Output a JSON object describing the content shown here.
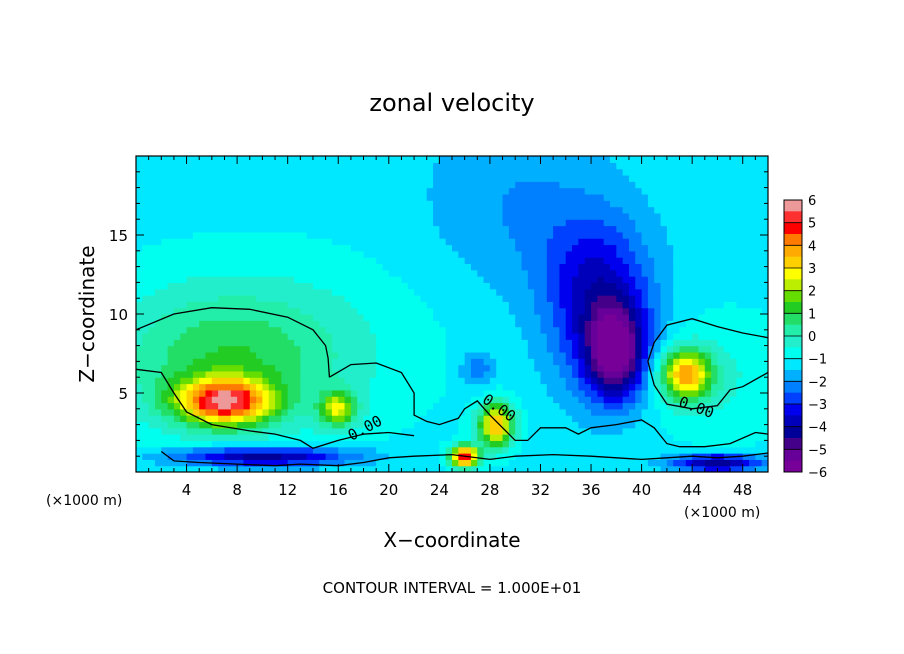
{
  "chart_data": {
    "type": "heatmap",
    "title": "zonal velocity",
    "xlabel": "X−coordinate",
    "ylabel": "Z−coordinate",
    "x_unit_note": "(×1000 m)",
    "x_unit_note_right": "(×1000 m)",
    "footnote": "CONTOUR INTERVAL = 1.000E+01",
    "xlim": [
      0,
      50
    ],
    "ylim": [
      0,
      20
    ],
    "x_ticks": [
      4,
      8,
      12,
      16,
      20,
      24,
      28,
      32,
      36,
      40,
      44,
      48
    ],
    "y_ticks": [
      5,
      10,
      15
    ],
    "colorbar": {
      "ticks": [
        "6",
        "5",
        "4",
        "3",
        "2",
        "1",
        "0",
        "−1",
        "−2",
        "−3",
        "−4",
        "−5",
        "−6"
      ],
      "colors": [
        "#ee9999",
        "#ff3030",
        "#ff0000",
        "#ff7a00",
        "#ffaa00",
        "#ffd000",
        "#ffff00",
        "#bbee00",
        "#66dd00",
        "#22cc22",
        "#22dd66",
        "#22eeaa",
        "#22eecc",
        "#00ffee",
        "#00e8ff",
        "#00b0ff",
        "#0080ff",
        "#0040ff",
        "#0000ee",
        "#0000bb",
        "#000099",
        "#440088",
        "#660099",
        "#770099"
      ]
    },
    "field_features": [
      {
        "name": "background",
        "x": 25,
        "z": 15,
        "value": -1.2
      },
      {
        "name": "upper cyan band",
        "x": 30,
        "z": 17,
        "value": -2.0
      },
      {
        "name": "upper cyan band 2",
        "x": 36,
        "z": 13,
        "value": -2.2
      },
      {
        "name": "blue minimum",
        "x": 38,
        "z": 7.5,
        "value": -5.0
      },
      {
        "name": "blue minimum halo",
        "x": 37,
        "z": 9.5,
        "value": -3.3
      },
      {
        "name": "left red maximum",
        "x": 7,
        "z": 4.5,
        "value": 4.5
      },
      {
        "name": "left green zone",
        "x": 7,
        "z": 7,
        "value": 0.2
      },
      {
        "name": "right orange maximum",
        "x": 43.5,
        "z": 6.2,
        "value": 3.5
      },
      {
        "name": "center orange maximum",
        "x": 28.5,
        "z": 3,
        "value": 3.5
      },
      {
        "name": "small yellow patch",
        "x": 16,
        "z": 4,
        "value": 2.0
      },
      {
        "name": "near-surface red",
        "x": 26,
        "z": 1,
        "value": 5.0
      },
      {
        "name": "near-surface blue left",
        "x": 10,
        "z": 1,
        "value": -4.5
      },
      {
        "name": "near-surface blue right",
        "x": 46,
        "z": 0.6,
        "value": -4.5
      },
      {
        "name": "mid cyan spot",
        "x": 27,
        "z": 6.5,
        "value": -2.4
      }
    ],
    "contour_labels": [
      "0.00",
      "0.00",
      "0.00"
    ]
  }
}
